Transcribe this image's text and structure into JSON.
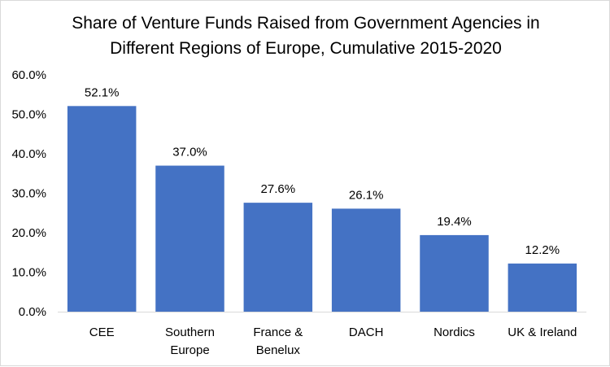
{
  "chart_data": {
    "type": "bar",
    "title_lines": [
      "Share of Venture Funds Raised from Government Agencies in",
      "Different Regions of Europe, Cumulative 2015-2020"
    ],
    "categories": [
      [
        "CEE"
      ],
      [
        "Southern",
        "Europe"
      ],
      [
        "France &",
        "Benelux"
      ],
      [
        "DACH"
      ],
      [
        "Nordics"
      ],
      [
        "UK & Ireland"
      ]
    ],
    "values": [
      52.1,
      37.0,
      27.6,
      26.1,
      19.4,
      12.2
    ],
    "data_labels": [
      "52.1%",
      "37.0%",
      "27.6%",
      "26.1%",
      "19.4%",
      "12.2%"
    ],
    "y_ticks": [
      {
        "value": 0,
        "label": "0.0%"
      },
      {
        "value": 10,
        "label": "10.0%"
      },
      {
        "value": 20,
        "label": "20.0%"
      },
      {
        "value": 30,
        "label": "30.0%"
      },
      {
        "value": 40,
        "label": "40.0%"
      },
      {
        "value": 50,
        "label": "50.0%"
      },
      {
        "value": 60,
        "label": "60.0%"
      }
    ],
    "ylim": [
      0,
      60
    ],
    "xlabel": "",
    "ylabel": "",
    "bar_color": "#4472C4",
    "axis_color": "#d9d9d9",
    "grid": false,
    "legend": "none"
  }
}
